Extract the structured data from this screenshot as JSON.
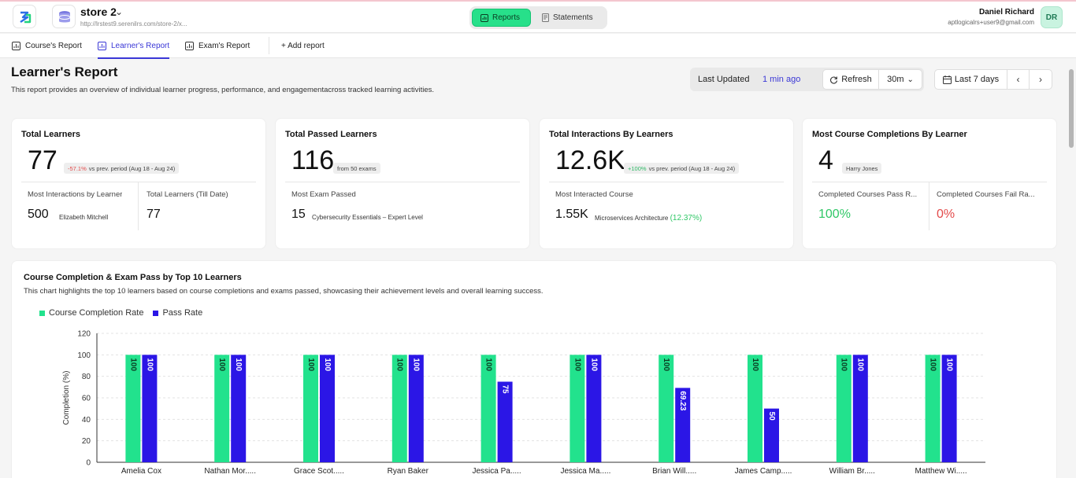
{
  "app": {
    "store_name": "store 2",
    "store_url": "http://lrstest9.serenilrs.com/store-2/x...",
    "nav": {
      "reports": "Reports",
      "statements": "Statements"
    },
    "user": {
      "name": "Daniel Richard",
      "email": "aptlogicalrs+user9@gmail.com",
      "initials": "DR"
    }
  },
  "tabs": [
    {
      "label": "Course's Report"
    },
    {
      "label": "Learner's Report"
    },
    {
      "label": "Exam's Report"
    }
  ],
  "add_report": "+ Add report",
  "page": {
    "title": "Learner's Report",
    "description": "This report provides an overview of individual learner progress, performance, and engagementacross tracked learning activities."
  },
  "toolbar": {
    "last_updated_label": "Last Updated",
    "last_updated_value": "1 min ago",
    "refresh": "Refresh",
    "interval": "30m",
    "range": "Last 7 days"
  },
  "cards": {
    "total_learners": {
      "title": "Total Learners",
      "value": "77",
      "delta": "-57.1%",
      "delta_note": "vs prev. period (Aug 18 - Aug 24)",
      "left_label": "Most Interactions by Learner",
      "left_value": "500",
      "left_note": "Elizabeth Mitchell",
      "right_label": "Total Learners (Till Date)",
      "right_value": "77"
    },
    "total_passed": {
      "title": "Total Passed Learners",
      "value": "116",
      "chip": "from 50 exams",
      "label": "Most Exam Passed",
      "sub_value": "15",
      "sub_note": "Cybersecurity Essentials – Expert Level"
    },
    "total_interactions": {
      "title": "Total Interactions By Learners",
      "value": "12.6K",
      "delta": "+100%",
      "delta_note": "vs prev. period (Aug 18 - Aug 24)",
      "label": "Most Interacted Course",
      "sub_value": "1.55K",
      "sub_note": "Microservices Architecture",
      "sub_pct": "(12.37%)"
    },
    "most_completions": {
      "title": "Most Course Completions By Learner",
      "value": "4",
      "chip": "Harry Jones",
      "left_label": "Completed Courses Pass R...",
      "left_value": "100%",
      "right_label": "Completed Courses Fail Ra...",
      "right_value": "0%"
    }
  },
  "chart": {
    "title": "Course Completion & Exam Pass by Top 10 Learners",
    "description": "This chart highlights the top 10 learners based on course completions and exams passed, showcasing their achievement levels and overall learning success."
  },
  "chart_data": {
    "type": "bar",
    "ylabel": "Completion (%)",
    "ylim": [
      0,
      120
    ],
    "yticks": [
      0,
      20,
      40,
      60,
      80,
      100,
      120
    ],
    "grid": true,
    "legend_position": "top-left",
    "categories": [
      "Amelia Cox",
      "Nathan Mor.....",
      "Grace Scot.....",
      "Ryan Baker",
      "Jessica Pa.....",
      "Jessica Ma.....",
      "Brian Will.....",
      "James Camp.....",
      "William Br.....",
      "Matthew Wi....."
    ],
    "series": [
      {
        "name": "Course Completion Rate",
        "color": "#22e28d",
        "values": [
          100,
          100,
          100,
          100,
          100,
          100,
          100,
          100,
          100,
          100
        ]
      },
      {
        "name": "Pass Rate",
        "color": "#2b16e6",
        "values": [
          100,
          100,
          100,
          100,
          75,
          100,
          69.23,
          50,
          100,
          100
        ]
      }
    ]
  }
}
